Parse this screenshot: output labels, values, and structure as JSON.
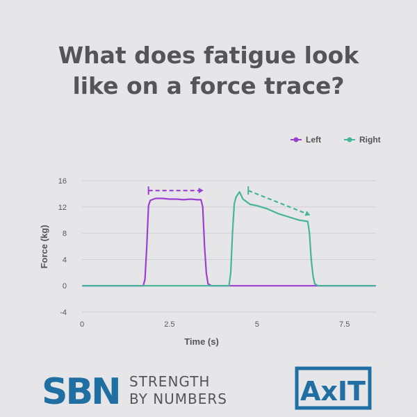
{
  "title_line1": "What does fatigue look",
  "title_line2": "like on a force trace?",
  "legend": [
    {
      "label": "Left",
      "color": "#9a3fd1"
    },
    {
      "label": "Right",
      "color": "#45b49a"
    }
  ],
  "brand": {
    "logo_text": "SBN",
    "line1": "STRENGTH",
    "line2": "BY NUMBERS",
    "partner_logo": "AxIT",
    "logo_color": "#1f6fa3"
  },
  "chart_data": {
    "type": "line",
    "xlabel": "Time (s)",
    "ylabel": "Force (kg)",
    "xlim": [
      0,
      8.4
    ],
    "ylim": [
      -4,
      16
    ],
    "x_ticks": [
      0,
      2.5,
      5,
      7.5
    ],
    "x_tick_labels": [
      "0",
      "2.5",
      "5",
      "7.5"
    ],
    "y_ticks": [
      16,
      12,
      8,
      4,
      0,
      -4
    ],
    "y_tick_labels": [
      "16",
      "12",
      "8",
      "4",
      "0",
      "-4"
    ],
    "grid": true,
    "legend_position": "top-right",
    "series": [
      {
        "name": "Left",
        "color": "#9a3fd1",
        "x": [
          0,
          1.75,
          1.8,
          1.85,
          1.9,
          1.95,
          2.0,
          2.1,
          2.3,
          2.5,
          2.7,
          2.9,
          3.1,
          3.3,
          3.4,
          3.45,
          3.5,
          3.55,
          3.6,
          3.7,
          4.2,
          8.4
        ],
        "y": [
          0,
          0,
          1,
          6,
          12.2,
          13.0,
          13.1,
          13.3,
          13.3,
          13.2,
          13.2,
          13.1,
          13.2,
          13.1,
          13.1,
          12,
          6,
          2,
          0.3,
          0,
          0,
          0
        ]
      },
      {
        "name": "Right",
        "color": "#45b49a",
        "x": [
          0,
          4.2,
          4.25,
          4.3,
          4.35,
          4.4,
          4.5,
          4.6,
          4.7,
          4.8,
          5.0,
          5.3,
          5.6,
          5.9,
          6.2,
          6.45,
          6.5,
          6.55,
          6.6,
          6.65,
          6.75,
          8.4
        ],
        "y": [
          0,
          0,
          2,
          8,
          12.5,
          13.5,
          14.3,
          13.2,
          12.8,
          12.4,
          12.2,
          11.7,
          11.0,
          10.5,
          10.0,
          9.8,
          8,
          4,
          1.5,
          0.3,
          0,
          0
        ]
      }
    ],
    "annotations": [
      {
        "type": "dashed-arrow",
        "color": "#9a3fd1",
        "from": [
          1.9,
          14.5
        ],
        "to": [
          3.45,
          14.5
        ]
      },
      {
        "type": "dashed-arrow",
        "color": "#45b49a",
        "from": [
          4.75,
          14.5
        ],
        "to": [
          6.5,
          10.8
        ]
      }
    ]
  }
}
